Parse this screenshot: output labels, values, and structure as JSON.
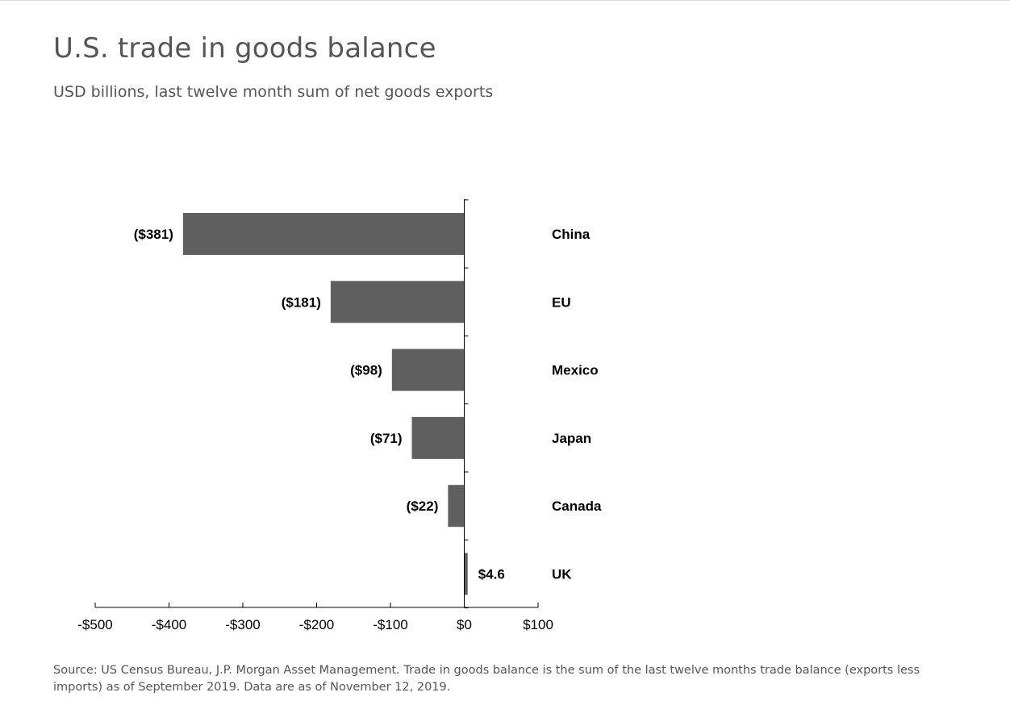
{
  "header": {
    "title": "U.S. trade in goods balance",
    "subtitle": "USD billions, last twelve month sum of net goods exports"
  },
  "footer": {
    "source": "Source: US Census Bureau, J.P. Morgan Asset Management. Trade in goods balance is the sum of the last twelve months trade balance (exports less imports) as of September 2019. Data are as of November 12, 2019."
  },
  "chart_data": {
    "type": "bar",
    "orientation": "horizontal",
    "title": "U.S. trade in goods balance",
    "subtitle": "USD billions, last twelve month sum of net goods exports",
    "categories": [
      "China",
      "EU",
      "Mexico",
      "Japan",
      "Canada",
      "UK"
    ],
    "values": [
      -381,
      -181,
      -98,
      -71,
      -22,
      4.6
    ],
    "data_labels": [
      "($381)",
      "($181)",
      "($98)",
      "($71)",
      "($22)",
      "$4.6"
    ],
    "xlim": [
      -500,
      100
    ],
    "x_ticks": [
      -500,
      -400,
      -300,
      -200,
      -100,
      0,
      100
    ],
    "x_tick_labels": [
      "-$500",
      "-$400",
      "-$300",
      "-$200",
      "-$100",
      "$0",
      "$100"
    ],
    "xlabel": "",
    "ylabel": "",
    "grid": false,
    "legend": "none",
    "bar_color": "#5f5f5f",
    "text_color": "#000000"
  }
}
